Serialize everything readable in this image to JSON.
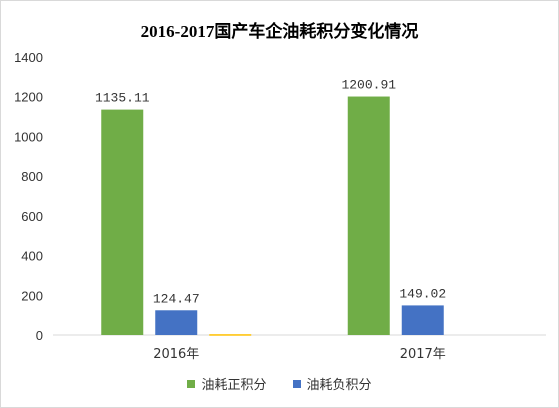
{
  "chart_data": {
    "type": "bar",
    "title": "2016-2017国产车企油耗积分变化情况",
    "categories": [
      "2016年",
      "2017年"
    ],
    "series": [
      {
        "name": "油耗正积分",
        "color": "#70ad47",
        "values": [
          1135.11,
          1200.91
        ],
        "labels": [
          "1135.11",
          "1200.91"
        ]
      },
      {
        "name": "油耗负积分",
        "color": "#4472c4",
        "values": [
          124.47,
          149.02
        ],
        "labels": [
          "124.47",
          "149.02"
        ]
      },
      {
        "name": "",
        "color": "#ffc000",
        "values": [
          4,
          0
        ],
        "labels": [
          "",
          ""
        ]
      }
    ],
    "yticks": [
      "0",
      "200",
      "400",
      "600",
      "800",
      "1000",
      "1200",
      "1400"
    ],
    "ylim": [
      0,
      1400
    ],
    "grid": true,
    "legend": "bottom"
  }
}
